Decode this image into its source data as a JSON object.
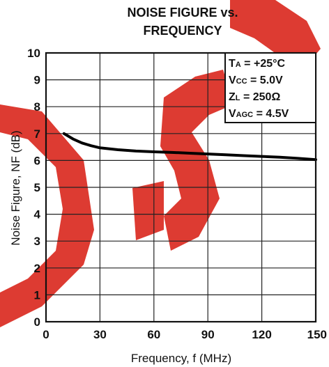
{
  "chart_data": {
    "type": "line",
    "title_line1": "NOISE FIGURE vs.",
    "title_line2": "FREQUENCY",
    "xlabel": "Frequency, f (MHz)",
    "ylabel": "Noise Figure, NF (dB)",
    "xlim": [
      0,
      150
    ],
    "ylim": [
      0,
      10
    ],
    "x_ticks": [
      0,
      30,
      60,
      90,
      120,
      150
    ],
    "y_ticks": [
      0,
      1,
      2,
      3,
      4,
      5,
      6,
      7,
      8,
      9,
      10
    ],
    "grid": true,
    "series": [
      {
        "x": [
          10,
          15,
          20,
          25,
          30,
          40,
          50,
          60,
          70,
          80,
          90,
          100,
          110,
          120,
          130,
          140,
          150
        ],
        "values": [
          7.0,
          6.8,
          6.65,
          6.55,
          6.47,
          6.4,
          6.35,
          6.32,
          6.3,
          6.27,
          6.24,
          6.21,
          6.18,
          6.15,
          6.12,
          6.08,
          6.03
        ]
      }
    ],
    "conditions": [
      {
        "main": "T",
        "sub": "A",
        "rest": " = +25°C"
      },
      {
        "main": "V",
        "sub": "CC",
        "rest": " = 5.0V"
      },
      {
        "main": "Z",
        "sub": "L",
        "rest": " = 250Ω"
      },
      {
        "main": "V",
        "sub": "AGC",
        "rest": " = 4.5V"
      }
    ],
    "conditions_position": "top-right",
    "colors": {
      "watermark": "#d9261c",
      "curve": "#000000"
    }
  }
}
